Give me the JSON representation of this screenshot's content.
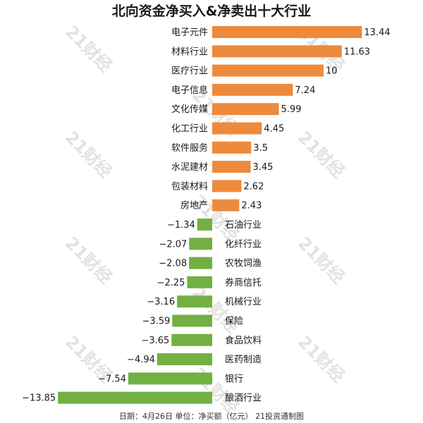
{
  "chart_data": {
    "type": "bar",
    "orientation": "horizontal",
    "title": "北向资金净买入&净卖出十大行业",
    "footer": "日期：4月26日 单位：净买额（亿元） 21投资通制图",
    "watermark": "21财经",
    "categories": [
      "电子元件",
      "材料行业",
      "医疗行业",
      "电子信息",
      "文化传媒",
      "化工行业",
      "软件服务",
      "水泥建材",
      "包装材料",
      "房地产",
      "石油行业",
      "化纤行业",
      "农牧饲渔",
      "券商信托",
      "机械行业",
      "保险",
      "食品饮料",
      "医药制造",
      "银行",
      "酿酒行业"
    ],
    "values": [
      13.44,
      11.63,
      10,
      7.24,
      5.99,
      4.45,
      3.5,
      3.45,
      2.62,
      2.43,
      -1.34,
      -2.07,
      -2.08,
      -2.25,
      -3.16,
      -3.59,
      -3.65,
      -4.94,
      -7.54,
      -13.85
    ],
    "value_labels": [
      "13.44",
      "11.63",
      "10",
      "7.24",
      "5.99",
      "4.45",
      "3.5",
      "3.45",
      "2.62",
      "2.43",
      "−1.34",
      "−2.07",
      "−2.08",
      "−2.25",
      "−3.16",
      "−3.59",
      "−3.65",
      "−4.94",
      "−7.54",
      "−13.85"
    ],
    "colors": {
      "positive": "#ee8a3c",
      "negative": "#72b043"
    }
  }
}
